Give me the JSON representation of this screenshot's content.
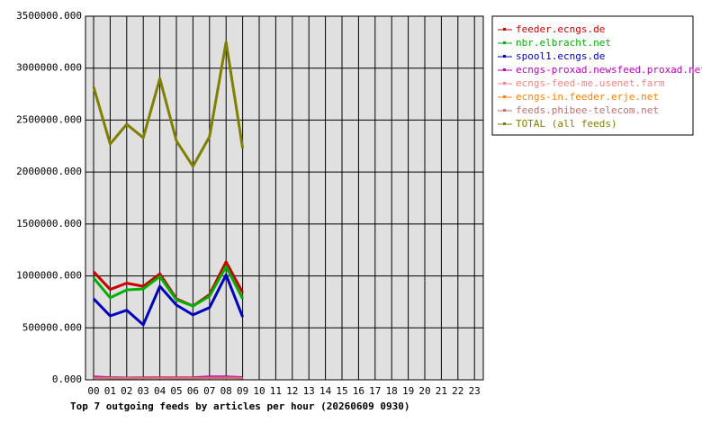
{
  "chart_data": {
    "type": "line",
    "title": "Top 7 outgoing feeds by articles per hour (20260609 0930)",
    "categories": [
      "00",
      "01",
      "02",
      "03",
      "04",
      "05",
      "06",
      "07",
      "08",
      "09",
      "10",
      "11",
      "12",
      "13",
      "14",
      "15",
      "16",
      "17",
      "18",
      "19",
      "20",
      "21",
      "22",
      "23"
    ],
    "ylim": [
      0,
      3500000
    ],
    "yticks": [
      {
        "value": 0,
        "label": "0.000"
      },
      {
        "value": 500000,
        "label": "500000.000"
      },
      {
        "value": 1000000,
        "label": "1000000.000"
      },
      {
        "value": 1500000,
        "label": "1500000.000"
      },
      {
        "value": 2000000,
        "label": "2000000.000"
      },
      {
        "value": 2500000,
        "label": "2500000.000"
      },
      {
        "value": 3000000,
        "label": "3000000.000"
      },
      {
        "value": 3500000,
        "label": "3500000.000"
      }
    ],
    "grid": true,
    "legend": "right",
    "series": [
      {
        "name": "feeder.ecngs.de",
        "color": "#cc0000",
        "values": [
          1040000,
          870000,
          930000,
          900000,
          1020000,
          780000,
          710000,
          820000,
          1135000,
          840000,
          null,
          null,
          null,
          null,
          null,
          null,
          null,
          null,
          null,
          null,
          null,
          null,
          null,
          null
        ]
      },
      {
        "name": "nbr.elbracht.net",
        "color": "#00b000",
        "values": [
          980000,
          790000,
          865000,
          875000,
          995000,
          770000,
          710000,
          805000,
          1090000,
          780000,
          null,
          null,
          null,
          null,
          null,
          null,
          null,
          null,
          null,
          null,
          null,
          null,
          null,
          null
        ]
      },
      {
        "name": "spool1.ecngs.de",
        "color": "#0000c0",
        "values": [
          780000,
          615000,
          670000,
          530000,
          900000,
          720000,
          625000,
          695000,
          1010000,
          605000,
          null,
          null,
          null,
          null,
          null,
          null,
          null,
          null,
          null,
          null,
          null,
          null,
          null,
          null
        ]
      },
      {
        "name": "ecngs-proxad.newsfeed.proxad.net",
        "color": "#c000c0",
        "values": [
          32000,
          25000,
          22000,
          24000,
          25000,
          24000,
          25000,
          32000,
          33000,
          26000,
          null,
          null,
          null,
          null,
          null,
          null,
          null,
          null,
          null,
          null,
          null,
          null,
          null,
          null
        ]
      },
      {
        "name": "ecngs-feed-me.usenet.farm",
        "color": "#ff8080",
        "values": [
          20000,
          18000,
          17000,
          18000,
          19000,
          18000,
          18000,
          20000,
          21000,
          18000,
          null,
          null,
          null,
          null,
          null,
          null,
          null,
          null,
          null,
          null,
          null,
          null,
          null,
          null
        ]
      },
      {
        "name": "ecngs-in.feeder.erje.net",
        "color": "#ff8000",
        "values": [
          18000,
          16000,
          15000,
          16000,
          17000,
          16000,
          16000,
          18000,
          19000,
          16000,
          null,
          null,
          null,
          null,
          null,
          null,
          null,
          null,
          null,
          null,
          null,
          null,
          null,
          null
        ]
      },
      {
        "name": "feeds.phibee-telecom.net",
        "color": "#c07070",
        "values": [
          16000,
          14000,
          14000,
          15000,
          15000,
          14000,
          14000,
          16000,
          17000,
          14000,
          null,
          null,
          null,
          null,
          null,
          null,
          null,
          null,
          null,
          null,
          null,
          null,
          null,
          null
        ]
      },
      {
        "name": "TOTAL (all feeds)",
        "color": "#808000",
        "values": [
          2820000,
          2270000,
          2460000,
          2330000,
          2900000,
          2300000,
          2055000,
          2340000,
          3250000,
          2230000,
          null,
          null,
          null,
          null,
          null,
          null,
          null,
          null,
          null,
          null,
          null,
          null,
          null,
          null
        ]
      }
    ]
  }
}
